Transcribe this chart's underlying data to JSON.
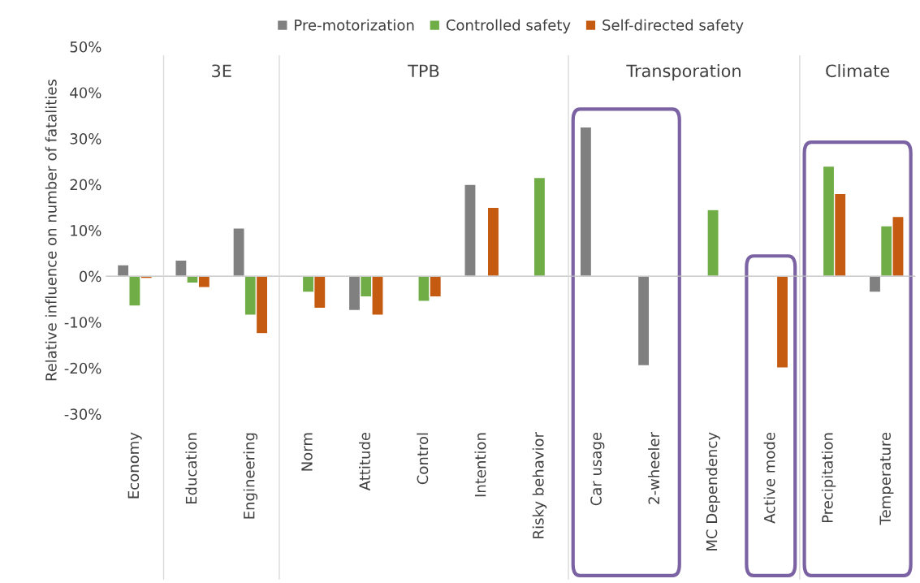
{
  "chart_data": {
    "type": "bar",
    "ylabel": "Relative influence on number of fatalities",
    "categories": [
      "Economy",
      "Education",
      "Engineering",
      "Norm",
      "Attitude",
      "Control",
      "Intention",
      "Risky behavior",
      "Car usage",
      "2-wheeler",
      "MC Dependency",
      "Active mode",
      "Precipitation",
      "Temperature"
    ],
    "series": [
      {
        "name": "Pre-motorization",
        "color": "#808080",
        "values": [
          2.5,
          3.5,
          10.5,
          null,
          -7.5,
          null,
          20,
          null,
          32.5,
          -19.5,
          null,
          null,
          null,
          -3.5
        ]
      },
      {
        "name": "Controlled safety",
        "color": "#70ad47",
        "values": [
          -6.5,
          -1.5,
          -8.5,
          -3.5,
          -4.5,
          -5.5,
          null,
          21.5,
          null,
          null,
          14.5,
          null,
          24,
          11
        ]
      },
      {
        "name": "Self-directed safety",
        "color": "#c55a11",
        "values": [
          -0.5,
          -2.5,
          -12.5,
          -7,
          -8.5,
          -4.5,
          15,
          null,
          null,
          null,
          null,
          -20,
          18,
          13
        ]
      }
    ],
    "ylim": [
      -30,
      50
    ],
    "yticks": [
      {
        "value": -30,
        "label": "-30%"
      },
      {
        "value": -20,
        "label": "-20%"
      },
      {
        "value": -10,
        "label": "-10%"
      },
      {
        "value": 0,
        "label": "0%"
      },
      {
        "value": 10,
        "label": "10%"
      },
      {
        "value": 20,
        "label": "20%"
      },
      {
        "value": 30,
        "label": "30%"
      },
      {
        "value": 40,
        "label": "40%"
      },
      {
        "value": 50,
        "label": "50%"
      }
    ],
    "annotations": [
      "3E",
      "TPB",
      "Transporation",
      "Climate"
    ],
    "legend": "top",
    "grid": false
  }
}
